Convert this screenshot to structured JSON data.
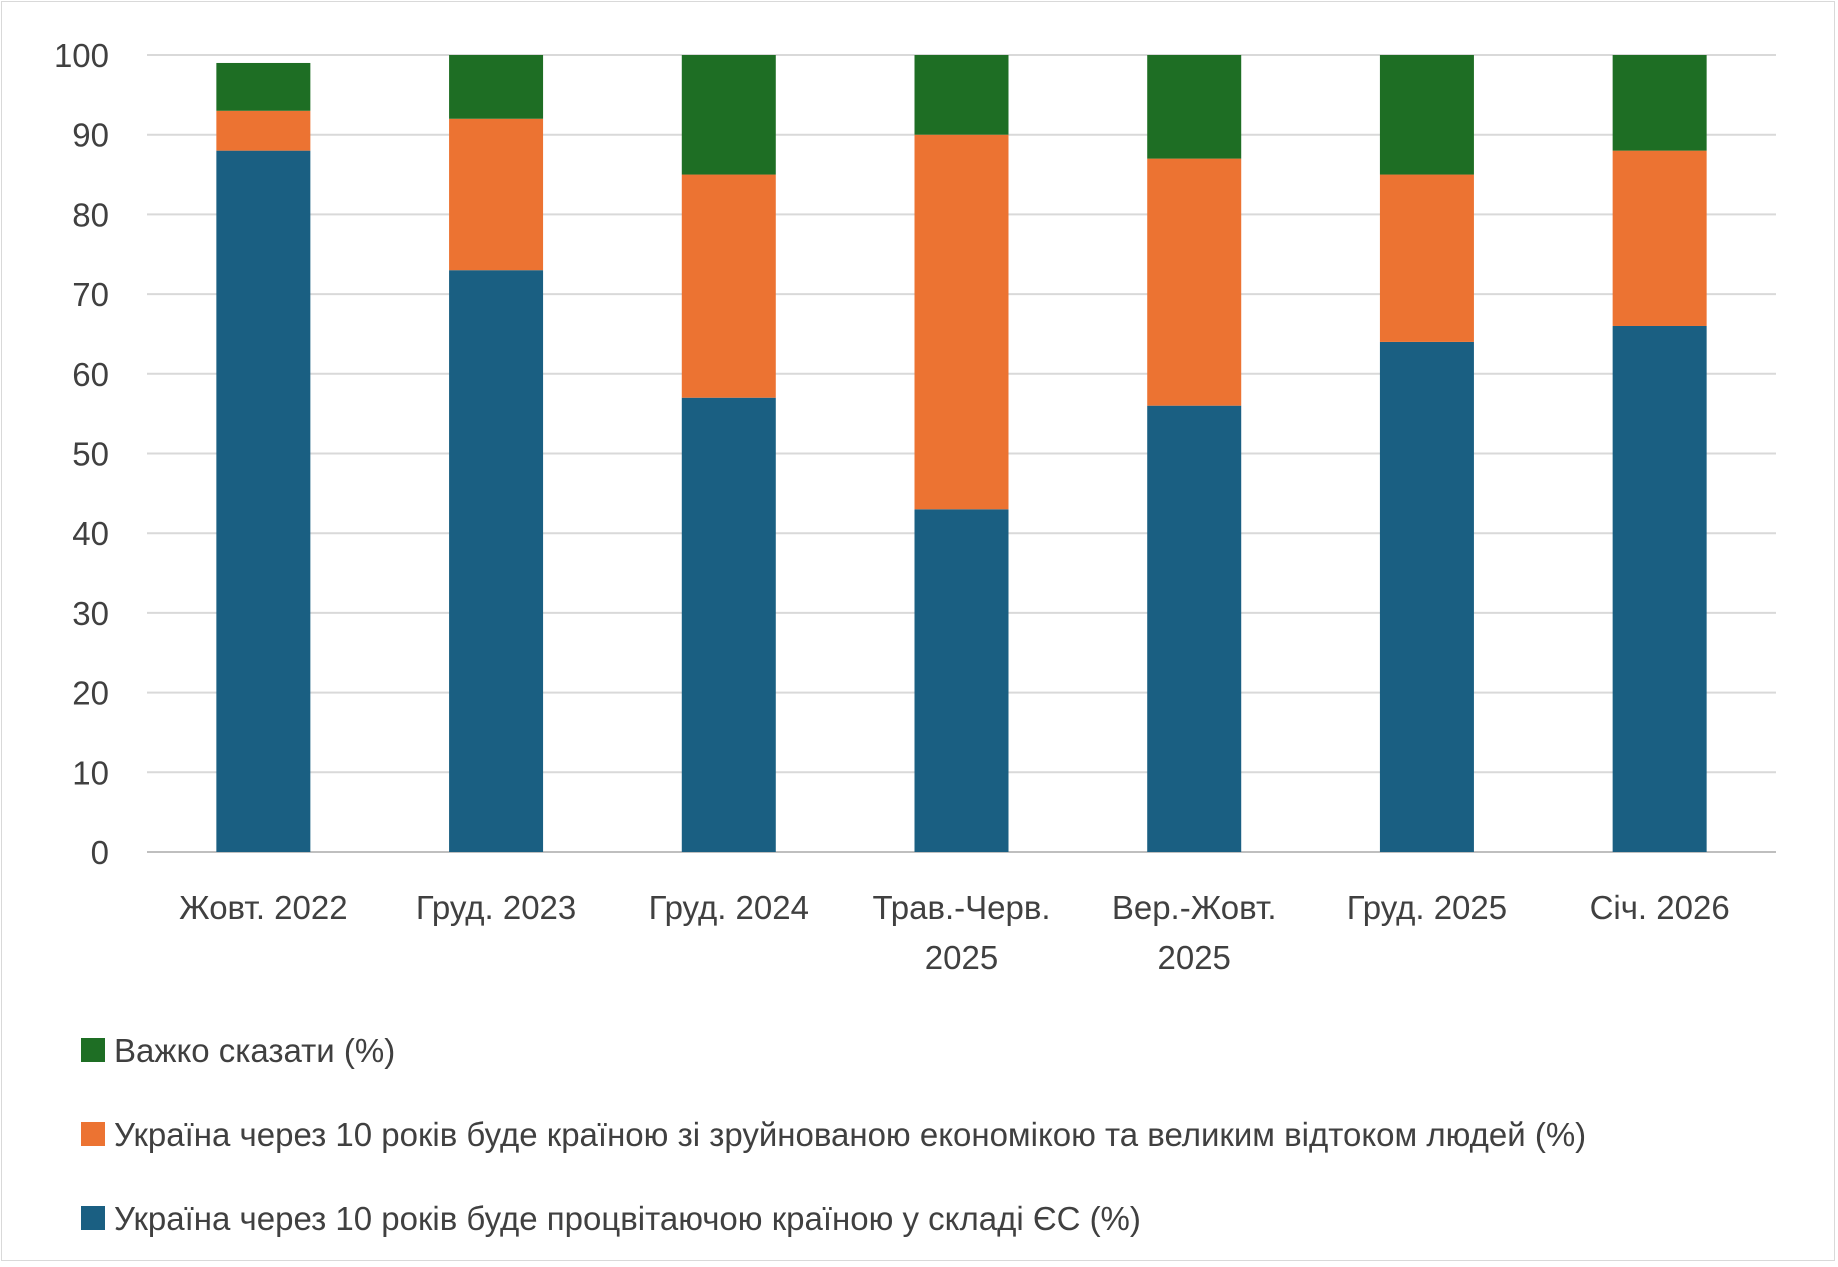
{
  "chart_data": {
    "type": "bar",
    "stacked": true,
    "title": "",
    "xlabel": "",
    "ylabel": "",
    "ylim": [
      0,
      100
    ],
    "yticks": [
      "0",
      "10",
      "20",
      "30",
      "40",
      "50",
      "60",
      "70",
      "80",
      "90",
      "100"
    ],
    "grid": true,
    "legend_position": "bottom",
    "categories": [
      [
        "Жовт. 2022"
      ],
      [
        "Груд. 2023"
      ],
      [
        "Груд. 2024"
      ],
      [
        "Трав.-Черв.",
        "2025"
      ],
      [
        "Вер.-Жовт.",
        "2025"
      ],
      [
        "Груд. 2025"
      ],
      [
        "Січ. 2026"
      ]
    ],
    "series": [
      {
        "name": "Україна через 10 років буде процвітаючою країною у складі ЄС (%)",
        "color": "#1a5f82",
        "values": [
          88,
          73,
          57,
          43,
          56,
          64,
          66
        ]
      },
      {
        "name": "Україна через 10 років буде країною зі зруйнованою економікою та великим відтоком людей (%)",
        "color": "#ec7332",
        "values": [
          5,
          19,
          28,
          47,
          31,
          21,
          22
        ]
      },
      {
        "name": "Важко сказати (%)",
        "color": "#1e6e24",
        "values": [
          6,
          8,
          15,
          10,
          13,
          15,
          12
        ]
      }
    ],
    "legend_order": [
      2,
      1,
      0
    ]
  }
}
